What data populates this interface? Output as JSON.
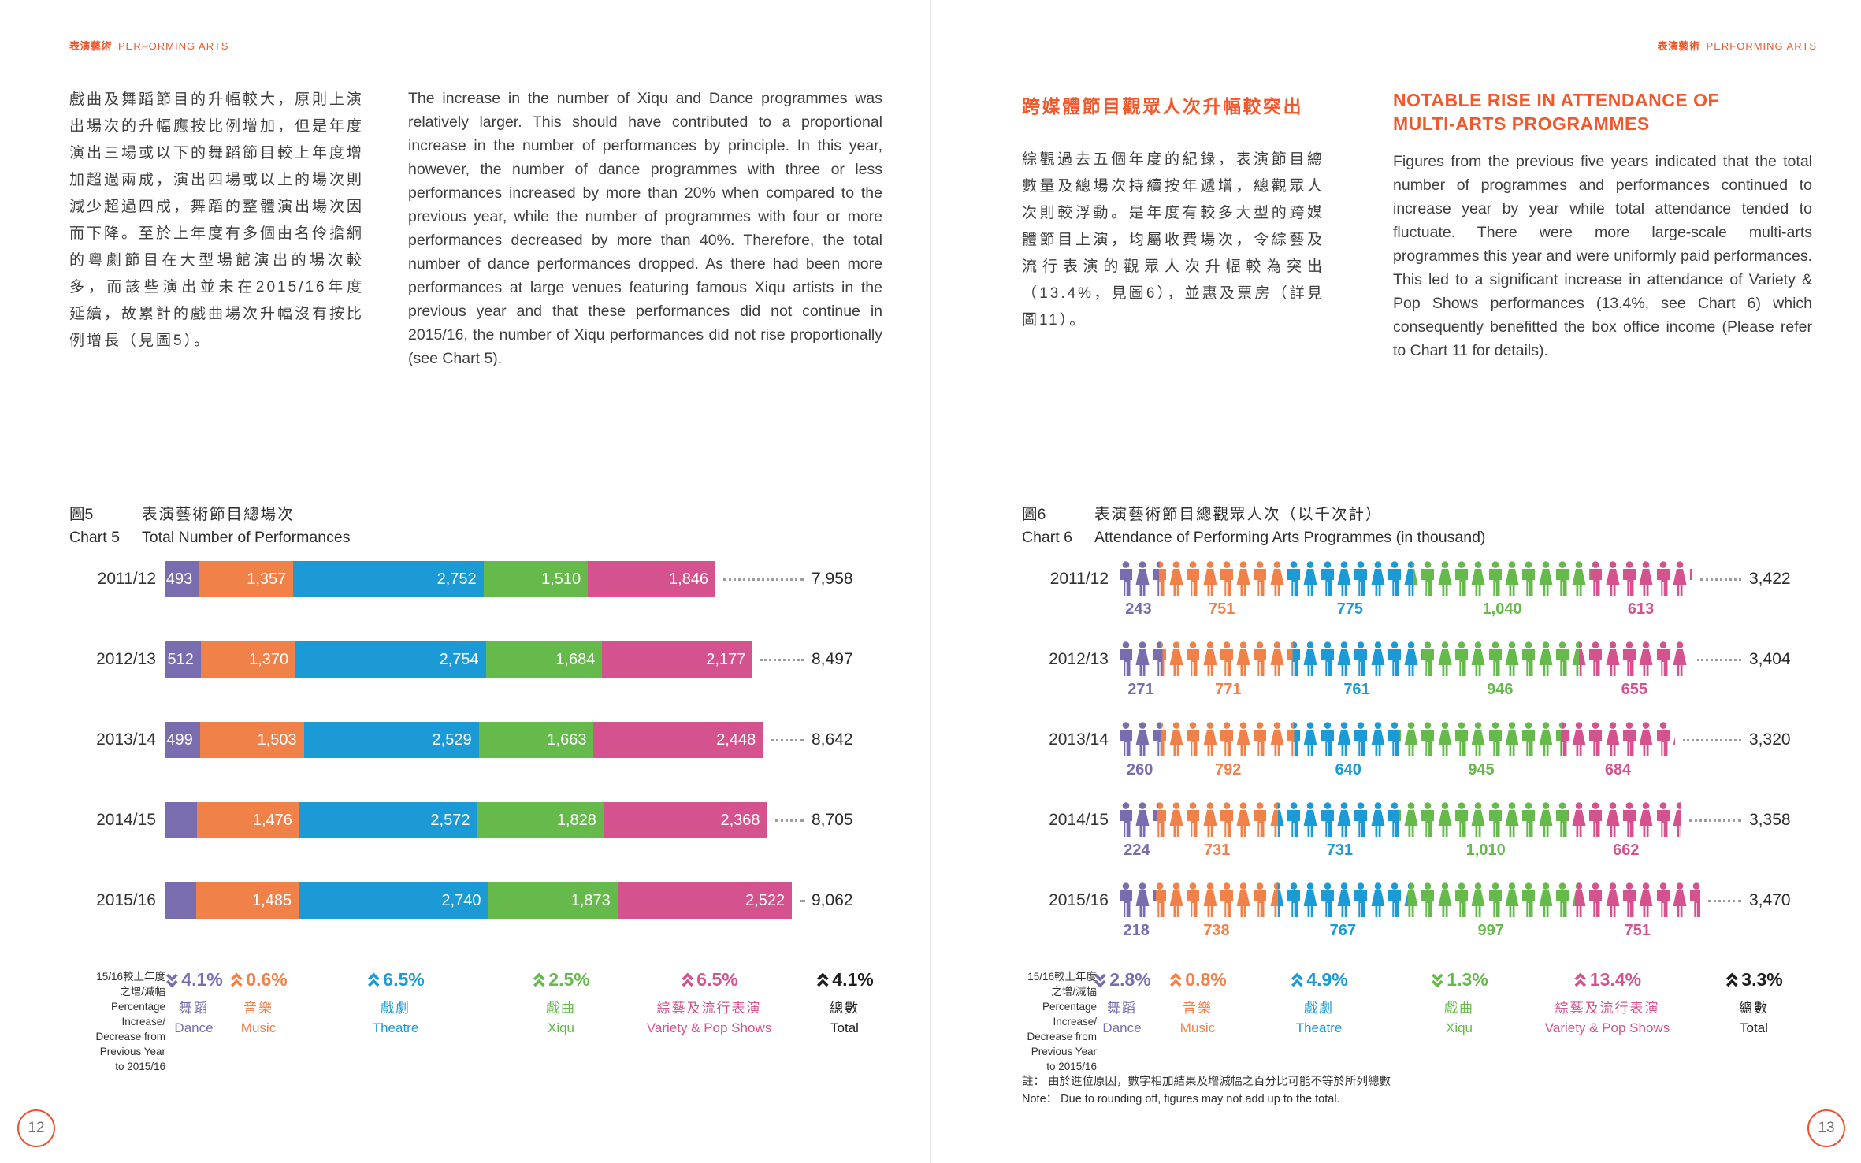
{
  "brand": {
    "header_zh": "表演藝術",
    "header_en": "PERFORMING ARTS"
  },
  "left_page": {
    "zh_paragraph": "戲曲及舞蹈節目的升幅較大，原則上演出場次的升幅應按比例增加，但是年度演出三場或以下的舞蹈節目較上年度增加超過兩成，演出四場或以上的場次則減少超過四成，舞蹈的整體演出場次因而下降。至於上年度有多個由名伶擔綱的粵劇節目在大型場館演出的場次較多，而該些演出並未在2015/16年度延續，故累計的戲曲場次升幅沒有按比例增長（見圖5）。",
    "en_paragraph": "The increase in the number of Xiqu and Dance programmes was relatively larger. This should have contributed to a proportional increase in the number of performances by principle. In this year, however, the number of dance programmes with three or less performances increased by more than 20% when compared to the previous year, while the number of programmes with four or more performances decreased by more than 40%. Therefore, the total number of dance performances dropped. As there had been more performances at large venues featuring famous Xiqu artists in the previous year and that these performances did not continue in 2015/16, the number of Xiqu performances did not rise proportionally (see Chart 5).",
    "page_number": "12"
  },
  "right_page": {
    "zh_heading": "跨媒體節目觀眾人次升幅較突出",
    "zh_paragraph": "綜觀過去五個年度的紀錄，表演節目總數量及總場次持續按年遞增，總觀眾人次則較浮動。是年度有較多大型的跨媒體節目上演，均屬收費場次，令綜藝及流行表演的觀眾人次升幅較為突出（13.4%，見圖6），並惠及票房（詳見圖11）。",
    "en_heading": "NOTABLE RISE IN ATTENDANCE OF MULTI-ARTS PROGRAMMES",
    "en_paragraph": "Figures from the previous five years indicated that the total number of programmes and performances continued to increase year by year while total attendance tended to fluctuate. There were more large-scale multi-arts programmes this year and were uniformly paid performances. This led to a significant increase in attendance of Variety & Pop Shows performances (13.4%, see Chart 6) which consequently benefitted the box office income (Please refer to Chart 11 for details).",
    "note_zh": "註： 由於進位原因，數字相加結果及增減幅之百分比可能不等於所列總數",
    "note_en": "Note： Due to rounding off, figures may not add up to the total.",
    "page_number": "13"
  },
  "categories": [
    {
      "key": "dance",
      "zh": "舞蹈",
      "en": "Dance",
      "color": "#7a6daf"
    },
    {
      "key": "music",
      "zh": "音樂",
      "en": "Music",
      "color": "#f08149"
    },
    {
      "key": "theatre",
      "zh": "戲劇",
      "en": "Theatre",
      "color": "#1c9ad6"
    },
    {
      "key": "xiqu",
      "zh": "戲曲",
      "en": "Xiqu",
      "color": "#66b94b"
    },
    {
      "key": "variety",
      "zh": "綜藝及流行表演",
      "en": "Variety & Pop Shows",
      "color": "#d4538f"
    }
  ],
  "total_label": {
    "zh": "總數",
    "en": "Total",
    "color": "#1e1e1e"
  },
  "change_label_lines": [
    "15/16較上年度",
    "之增/減幅",
    "Percentage",
    "Increase/",
    "Decrease from",
    "Previous Year",
    "to 2015/16"
  ],
  "chart_data": [
    {
      "id": "chart5",
      "type": "bar",
      "title_zh_no": "圖5",
      "title_zh": "表演藝術節目總場次",
      "title_en_no": "Chart 5",
      "title_en": "Total Number of Performances",
      "series_categories": [
        "Dance",
        "Music",
        "Theatre",
        "Xiqu",
        "Variety & Pop Shows"
      ],
      "rows": [
        {
          "year": "2011/12",
          "values": [
            493,
            1357,
            2752,
            1510,
            1846
          ],
          "total": 7958
        },
        {
          "year": "2012/13",
          "values": [
            512,
            1370,
            2754,
            1684,
            2177
          ],
          "total": 8497
        },
        {
          "year": "2013/14",
          "values": [
            499,
            1503,
            2529,
            1663,
            2448
          ],
          "total": 8642
        },
        {
          "year": "2014/15",
          "values": [
            461,
            1476,
            2572,
            1828,
            2368
          ],
          "total": 8705
        },
        {
          "year": "2015/16",
          "values": [
            442,
            1485,
            2740,
            1873,
            2522
          ],
          "total": 9062
        }
      ],
      "changes": [
        {
          "dir": "down",
          "value": "4.1%"
        },
        {
          "dir": "up",
          "value": "0.6%"
        },
        {
          "dir": "up",
          "value": "6.5%"
        },
        {
          "dir": "up",
          "value": "2.5%"
        },
        {
          "dir": "up",
          "value": "6.5%"
        }
      ],
      "total_change": {
        "dir": "up",
        "value": "4.1%"
      }
    },
    {
      "id": "chart6",
      "type": "pictogram",
      "unit_per_icon": 100,
      "title_zh_no": "圖6",
      "title_zh": "表演藝術節目總觀眾人次（以千次計）",
      "title_en_no": "Chart 6",
      "title_en": "Attendance of Performing Arts Programmes (in thousand)",
      "series_categories": [
        "Dance",
        "Music",
        "Theatre",
        "Xiqu",
        "Variety & Pop Shows"
      ],
      "rows": [
        {
          "year": "2011/12",
          "values": [
            243,
            751,
            775,
            1040,
            613
          ],
          "total": 3422
        },
        {
          "year": "2012/13",
          "values": [
            271,
            771,
            761,
            946,
            655
          ],
          "total": 3404
        },
        {
          "year": "2013/14",
          "values": [
            260,
            792,
            640,
            945,
            684
          ],
          "total": 3320
        },
        {
          "year": "2014/15",
          "values": [
            224,
            731,
            731,
            1010,
            662
          ],
          "total": 3358
        },
        {
          "year": "2015/16",
          "values": [
            218,
            738,
            767,
            997,
            751
          ],
          "total": 3470
        }
      ],
      "changes": [
        {
          "dir": "down",
          "value": "2.8%"
        },
        {
          "dir": "up",
          "value": "0.8%"
        },
        {
          "dir": "up",
          "value": "4.9%"
        },
        {
          "dir": "down",
          "value": "1.3%"
        },
        {
          "dir": "up",
          "value": "13.4%"
        }
      ],
      "total_change": {
        "dir": "up",
        "value": "3.3%"
      }
    }
  ]
}
